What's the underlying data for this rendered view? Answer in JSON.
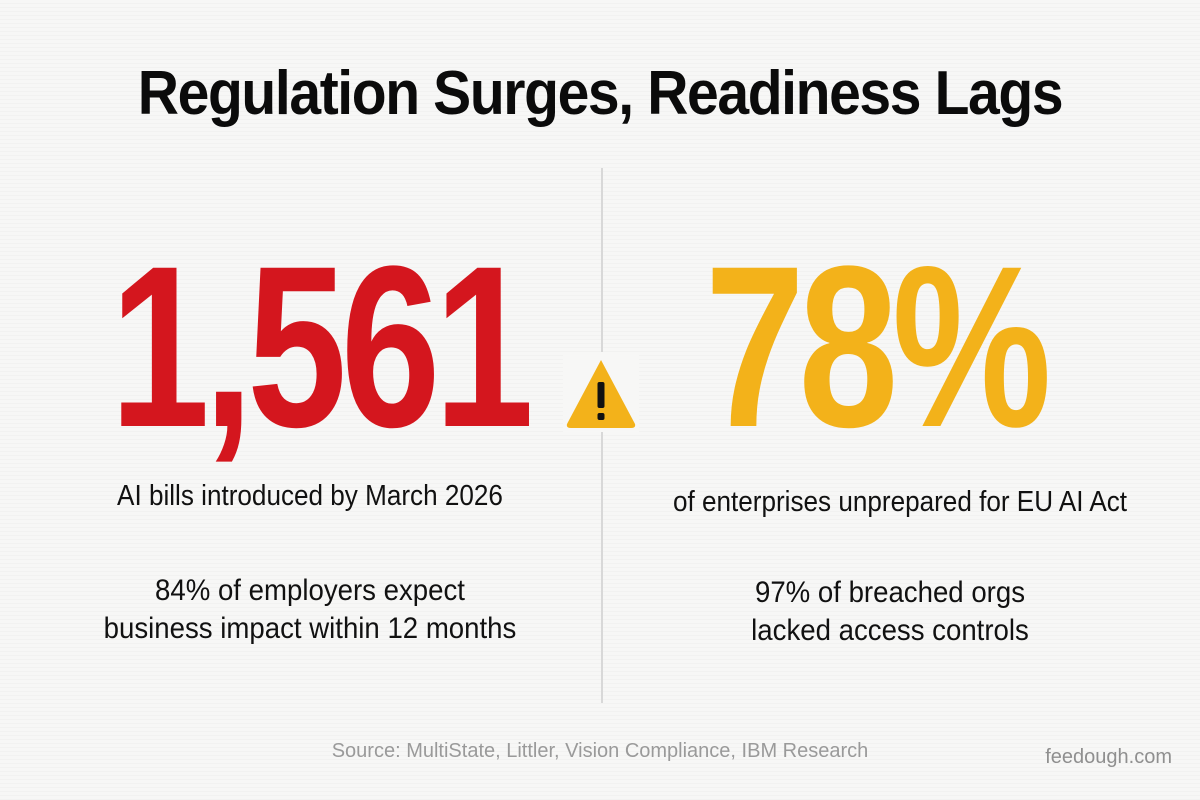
{
  "title": "Regulation Surges, Readiness Lags",
  "left": {
    "stat": "1,561",
    "caption": "AI bills introduced by March 2026",
    "detail_line1": "84% of employers expect",
    "detail_line2": "business impact within 12 months"
  },
  "right": {
    "stat": "78%",
    "caption": "of enterprises unprepared for EU AI Act",
    "detail_line1": "97% of breached orgs",
    "detail_line2": "lacked access controls"
  },
  "center_icon": "warning-icon",
  "source": "Source: MultiState, Littler, Vision Compliance, IBM Research",
  "brand": "feedough.com",
  "colors": {
    "left_stat": "#d4161e",
    "right_stat": "#f3b21a",
    "warning": "#f3b21a",
    "background": "#f7f7f6"
  }
}
